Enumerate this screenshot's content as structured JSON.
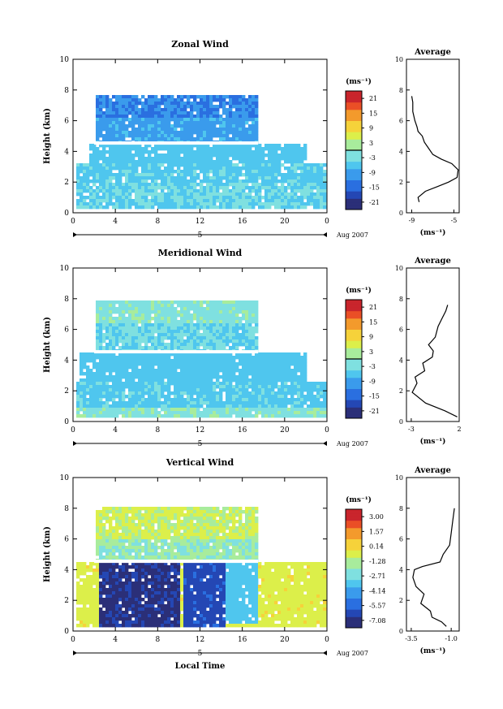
{
  "figure": {
    "date_label": "Aug 2007",
    "day_label": "5",
    "xlabel": "Local Time",
    "ylabel": "Height (km)",
    "unit_label": "(ms⁻¹)",
    "avg_xlabel": "(ms⁻¹)"
  },
  "colormap": [
    "#2b2f78",
    "#2447b4",
    "#2a6fe0",
    "#3a9bec",
    "#4fc6ee",
    "#7fe0e0",
    "#a8ec9c",
    "#dcef4a",
    "#f6d23a",
    "#f39a2c",
    "#ea4f26",
    "#c9252c"
  ],
  "chart_data": [
    {
      "type": "heatmap",
      "title": "Zonal Wind",
      "xlabel": "",
      "ylabel": "Height (km)",
      "xlim": [
        0,
        24
      ],
      "ylim": [
        0,
        10
      ],
      "xticks": [
        "0",
        "4",
        "8",
        "12",
        "16",
        "20",
        "0"
      ],
      "yticks": [
        "0",
        "2",
        "4",
        "6",
        "8",
        "10"
      ],
      "colorbar": {
        "unit": "(ms⁻¹)",
        "ticks": [
          "-21",
          "-15",
          "-9",
          "-3",
          "3",
          "9",
          "15",
          "21"
        ],
        "range": [
          -24,
          24
        ]
      },
      "value_layers": [
        {
          "x": [
            0.2,
            24
          ],
          "y": [
            0.2,
            2.0
          ],
          "value": -4
        },
        {
          "x": [
            0.2,
            24
          ],
          "y": [
            2.0,
            3.3
          ],
          "value": -5
        },
        {
          "x": [
            1.5,
            22
          ],
          "y": [
            3.3,
            4.5
          ],
          "value": -6
        },
        {
          "x": [
            2.0,
            17.5
          ],
          "y": [
            4.6,
            6.2
          ],
          "value": -9
        },
        {
          "x": [
            2.0,
            17.5
          ],
          "y": [
            6.2,
            7.7
          ],
          "value": -12
        }
      ],
      "average_profile": {
        "title": "Average",
        "xlabel": "(ms⁻¹)",
        "xticks": [
          "-9",
          "-5"
        ],
        "xlim": [
          -9.5,
          -4.5
        ],
        "ylim": [
          0,
          10
        ],
        "yticks": [
          "0",
          "2",
          "4",
          "6",
          "8",
          "10"
        ],
        "points": [
          [
            -8.3,
            0.7
          ],
          [
            -8.4,
            1.0
          ],
          [
            -7.7,
            1.4
          ],
          [
            -6.6,
            1.7
          ],
          [
            -5.5,
            2.0
          ],
          [
            -4.7,
            2.3
          ],
          [
            -4.6,
            2.8
          ],
          [
            -5.2,
            3.2
          ],
          [
            -6.2,
            3.5
          ],
          [
            -7.0,
            3.8
          ],
          [
            -7.4,
            4.2
          ],
          [
            -7.8,
            4.6
          ],
          [
            -8.0,
            5.0
          ],
          [
            -8.4,
            5.3
          ],
          [
            -8.5,
            5.6
          ],
          [
            -8.7,
            6.0
          ],
          [
            -8.9,
            6.6
          ],
          [
            -8.9,
            7.2
          ],
          [
            -9.0,
            7.6
          ]
        ]
      }
    },
    {
      "type": "heatmap",
      "title": "Meridional Wind",
      "xlabel": "",
      "ylabel": "Height (km)",
      "xlim": [
        0,
        24
      ],
      "ylim": [
        0,
        10
      ],
      "xticks": [
        "0",
        "4",
        "8",
        "12",
        "16",
        "20",
        "0"
      ],
      "yticks": [
        "0",
        "2",
        "4",
        "6",
        "8",
        "10"
      ],
      "colorbar": {
        "unit": "(ms⁻¹)",
        "ticks": [
          "-21",
          "-15",
          "-9",
          "-3",
          "3",
          "9",
          "15",
          "21"
        ],
        "range": [
          -24,
          24
        ]
      },
      "value_layers": [
        {
          "x": [
            0.2,
            24
          ],
          "y": [
            0.3,
            0.9
          ],
          "value": -1
        },
        {
          "x": [
            0.2,
            24
          ],
          "y": [
            0.9,
            2.5
          ],
          "value": -5
        },
        {
          "x": [
            0.5,
            22
          ],
          "y": [
            2.5,
            4.4
          ],
          "value": -6
        },
        {
          "x": [
            2.0,
            17.5
          ],
          "y": [
            4.6,
            6.5
          ],
          "value": -4
        },
        {
          "x": [
            2.0,
            17.5
          ],
          "y": [
            6.5,
            7.8
          ],
          "value": -1
        }
      ],
      "average_profile": {
        "title": "Average",
        "xlabel": "(ms⁻¹)",
        "xticks": [
          "-3",
          "2"
        ],
        "xlim": [
          -3.5,
          2
        ],
        "ylim": [
          0,
          10
        ],
        "yticks": [
          "0",
          "2",
          "4",
          "6",
          "8",
          "10"
        ],
        "points": [
          [
            1.8,
            0.3
          ],
          [
            0.5,
            0.7
          ],
          [
            -1.5,
            1.2
          ],
          [
            -2.9,
            1.9
          ],
          [
            -2.4,
            2.5
          ],
          [
            -2.6,
            2.9
          ],
          [
            -1.6,
            3.3
          ],
          [
            -1.8,
            3.8
          ],
          [
            -0.8,
            4.2
          ],
          [
            -0.7,
            4.6
          ],
          [
            -1.2,
            5.0
          ],
          [
            -0.5,
            5.5
          ],
          [
            -0.2,
            6.2
          ],
          [
            0.2,
            6.7
          ],
          [
            0.6,
            7.2
          ],
          [
            0.8,
            7.6
          ]
        ]
      }
    },
    {
      "type": "heatmap",
      "title": "Vertical Wind",
      "xlabel": "Local Time",
      "ylabel": "Height (km)",
      "xlim": [
        0,
        24
      ],
      "ylim": [
        0,
        10
      ],
      "xticks": [
        "0",
        "4",
        "8",
        "12",
        "16",
        "20",
        "0"
      ],
      "yticks": [
        "0",
        "2",
        "4",
        "6",
        "8",
        "10"
      ],
      "colorbar": {
        "unit": "(ms⁻¹)",
        "ticks": [
          "-7.08",
          "-5.57",
          "-4.14",
          "-2.71",
          "-1.28",
          "0.14",
          "1.57",
          "3.00"
        ],
        "range": [
          -7.8,
          3.7
        ]
      },
      "value_layers": [
        {
          "x": [
            0.2,
            24
          ],
          "y": [
            0.2,
            4.4
          ],
          "value": -0.5
        },
        {
          "x": [
            2.5,
            10
          ],
          "y": [
            0.2,
            4.4
          ],
          "value": -7.0
        },
        {
          "x": [
            10.5,
            14.5
          ],
          "y": [
            0.2,
            4.4
          ],
          "value": -6.2
        },
        {
          "x": [
            14.5,
            17.5
          ],
          "y": [
            0.5,
            4.4
          ],
          "value": -3.5
        },
        {
          "x": [
            2.0,
            17.5
          ],
          "y": [
            4.6,
            6.0
          ],
          "value": -2.0
        },
        {
          "x": [
            2.0,
            17.5
          ],
          "y": [
            6.0,
            8.0
          ],
          "value": -1.0
        }
      ],
      "average_profile": {
        "title": "Average",
        "xlabel": "(ms⁻¹)",
        "xticks": [
          "-3.5",
          "-1.0"
        ],
        "xlim": [
          -3.8,
          -0.5
        ],
        "ylim": [
          0,
          10
        ],
        "yticks": [
          "0",
          "2",
          "4",
          "6",
          "8",
          "10"
        ],
        "points": [
          [
            -1.3,
            0.3
          ],
          [
            -1.6,
            0.6
          ],
          [
            -2.2,
            0.9
          ],
          [
            -2.3,
            1.3
          ],
          [
            -2.9,
            1.8
          ],
          [
            -2.7,
            2.4
          ],
          [
            -3.2,
            2.9
          ],
          [
            -3.4,
            3.5
          ],
          [
            -3.3,
            4.0
          ],
          [
            -2.8,
            4.2
          ],
          [
            -1.7,
            4.5
          ],
          [
            -1.5,
            5.0
          ],
          [
            -1.1,
            5.6
          ],
          [
            -1.0,
            6.4
          ],
          [
            -0.9,
            7.2
          ],
          [
            -0.8,
            8.0
          ]
        ]
      }
    }
  ]
}
